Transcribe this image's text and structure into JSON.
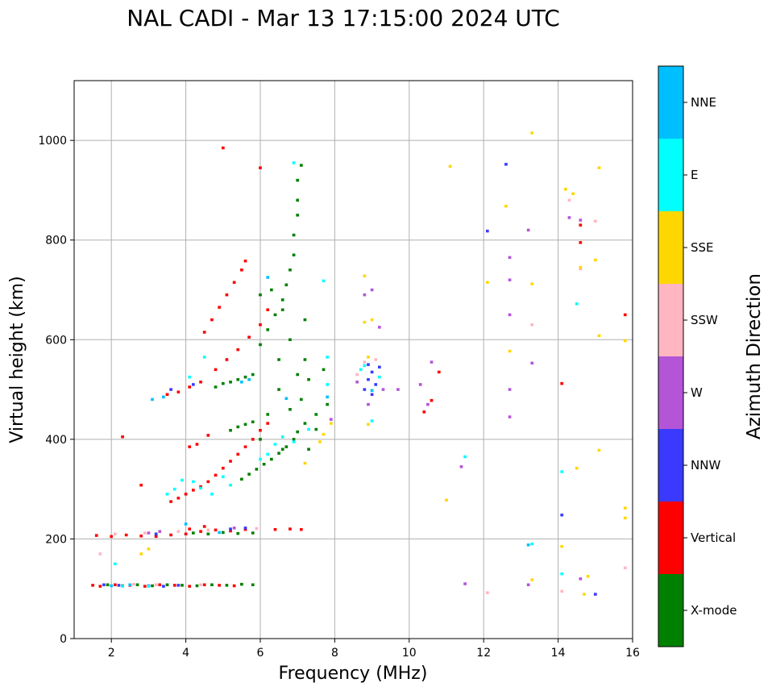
{
  "chart_data": {
    "type": "scatter",
    "title": "NAL CADI - Mar 13 17:15:00 2024 UTC",
    "xlabel": "Frequency (MHz)",
    "ylabel": "Virtual height (km)",
    "xlim": [
      1,
      16
    ],
    "ylim": [
      0,
      1120
    ],
    "xticks": [
      2,
      4,
      6,
      8,
      10,
      12,
      14,
      16
    ],
    "yticks": [
      0,
      200,
      400,
      600,
      800,
      1000
    ],
    "grid": true,
    "colorbar": {
      "title": "Azimuth Direction",
      "categories": [
        "X-mode",
        "Vertical",
        "NNW",
        "W",
        "SSW",
        "SSE",
        "E",
        "NNE"
      ],
      "colors": [
        "#008000",
        "#ff0000",
        "#3a3aff",
        "#b455d8",
        "#ffb6c1",
        "#ffd700",
        "#00ffff",
        "#00bfff"
      ]
    },
    "series": [
      {
        "name": "X-mode",
        "points": [
          [
            1.9,
            108
          ],
          [
            2.3,
            106
          ],
          [
            2.7,
            108
          ],
          [
            3.1,
            106
          ],
          [
            3.5,
            108
          ],
          [
            3.9,
            107
          ],
          [
            4.3,
            106
          ],
          [
            4.7,
            108
          ],
          [
            5.1,
            107
          ],
          [
            5.5,
            109
          ],
          [
            5.8,
            108
          ],
          [
            4.2,
            212
          ],
          [
            4.6,
            210
          ],
          [
            5.0,
            213
          ],
          [
            5.4,
            211
          ],
          [
            5.8,
            212
          ],
          [
            4.8,
            505
          ],
          [
            5.0,
            512
          ],
          [
            5.2,
            515
          ],
          [
            5.4,
            520
          ],
          [
            5.6,
            525
          ],
          [
            5.8,
            530
          ],
          [
            5.2,
            418
          ],
          [
            5.4,
            425
          ],
          [
            5.6,
            430
          ],
          [
            5.8,
            435
          ],
          [
            5.5,
            320
          ],
          [
            5.7,
            330
          ],
          [
            5.9,
            340
          ],
          [
            6.1,
            350
          ],
          [
            6.3,
            360
          ],
          [
            6.5,
            372
          ],
          [
            6.7,
            385
          ],
          [
            6.9,
            400
          ],
          [
            7.0,
            415
          ],
          [
            7.2,
            432
          ],
          [
            6.0,
            590
          ],
          [
            6.2,
            620
          ],
          [
            6.4,
            650
          ],
          [
            6.6,
            680
          ],
          [
            6.7,
            710
          ],
          [
            6.8,
            740
          ],
          [
            6.9,
            770
          ],
          [
            6.9,
            810
          ],
          [
            7.0,
            850
          ],
          [
            7.0,
            880
          ],
          [
            7.0,
            920
          ],
          [
            7.1,
            950
          ],
          [
            6.5,
            500
          ],
          [
            6.8,
            460
          ],
          [
            7.1,
            480
          ],
          [
            7.3,
            520
          ],
          [
            7.5,
            450
          ],
          [
            7.7,
            540
          ],
          [
            7.8,
            470
          ],
          [
            6.2,
            450
          ],
          [
            6.0,
            400
          ],
          [
            6.6,
            380
          ],
          [
            7.3,
            380
          ],
          [
            7.5,
            420
          ],
          [
            6.8,
            600
          ],
          [
            7.2,
            560
          ],
          [
            6.5,
            560
          ],
          [
            7.0,
            530
          ],
          [
            6.3,
            700
          ],
          [
            6.0,
            690
          ],
          [
            6.6,
            660
          ],
          [
            7.2,
            640
          ]
        ]
      },
      {
        "name": "Vertical",
        "points": [
          [
            1.5,
            107
          ],
          [
            1.7,
            105
          ],
          [
            2.1,
            108
          ],
          [
            2.5,
            107
          ],
          [
            2.9,
            105
          ],
          [
            3.3,
            108
          ],
          [
            3.7,
            107
          ],
          [
            4.1,
            105
          ],
          [
            4.5,
            108
          ],
          [
            4.9,
            107
          ],
          [
            5.3,
            106
          ],
          [
            1.6,
            207
          ],
          [
            2.0,
            205
          ],
          [
            2.4,
            208
          ],
          [
            2.8,
            206
          ],
          [
            3.2,
            205
          ],
          [
            3.6,
            208
          ],
          [
            4.0,
            210
          ],
          [
            4.4,
            215
          ],
          [
            4.8,
            218
          ],
          [
            5.2,
            216
          ],
          [
            5.6,
            219
          ],
          [
            6.4,
            219
          ],
          [
            6.8,
            220
          ],
          [
            7.1,
            219
          ],
          [
            3.6,
            275
          ],
          [
            3.8,
            282
          ],
          [
            4.0,
            290
          ],
          [
            4.2,
            298
          ],
          [
            4.4,
            305
          ],
          [
            4.6,
            315
          ],
          [
            4.8,
            328
          ],
          [
            5.0,
            342
          ],
          [
            5.2,
            356
          ],
          [
            5.4,
            370
          ],
          [
            5.6,
            385
          ],
          [
            5.8,
            400
          ],
          [
            6.0,
            418
          ],
          [
            6.2,
            432
          ],
          [
            3.5,
            490
          ],
          [
            3.8,
            495
          ],
          [
            4.1,
            505
          ],
          [
            4.4,
            515
          ],
          [
            4.8,
            540
          ],
          [
            5.1,
            560
          ],
          [
            5.4,
            580
          ],
          [
            5.7,
            605
          ],
          [
            6.0,
            630
          ],
          [
            6.2,
            660
          ],
          [
            4.1,
            385
          ],
          [
            4.3,
            390
          ],
          [
            4.6,
            408
          ],
          [
            4.5,
            615
          ],
          [
            4.7,
            640
          ],
          [
            4.9,
            665
          ],
          [
            5.1,
            690
          ],
          [
            5.3,
            715
          ],
          [
            5.5,
            740
          ],
          [
            5.6,
            758
          ],
          [
            5.0,
            985
          ],
          [
            6.0,
            945
          ],
          [
            2.3,
            405
          ],
          [
            2.8,
            308
          ],
          [
            10.6,
            478
          ],
          [
            10.4,
            455
          ],
          [
            14.1,
            512
          ],
          [
            14.6,
            830
          ],
          [
            14.6,
            795
          ],
          [
            15.8,
            650
          ],
          [
            10.8,
            535
          ],
          [
            4.1,
            220
          ],
          [
            4.5,
            225
          ]
        ]
      },
      {
        "name": "NNW",
        "points": [
          [
            1.8,
            108
          ],
          [
            2.2,
            107
          ],
          [
            3.0,
            106
          ],
          [
            3.4,
            105
          ],
          [
            3.8,
            107
          ],
          [
            5.2,
            220
          ],
          [
            5.6,
            222
          ],
          [
            3.6,
            500
          ],
          [
            4.2,
            510
          ],
          [
            8.9,
            520
          ],
          [
            9.0,
            535
          ],
          [
            8.8,
            500
          ],
          [
            9.1,
            510
          ],
          [
            8.9,
            550
          ],
          [
            9.0,
            490
          ],
          [
            9.2,
            545
          ],
          [
            12.6,
            952
          ],
          [
            12.1,
            818
          ],
          [
            15.0,
            89
          ],
          [
            14.1,
            248
          ],
          [
            3.2,
            210
          ]
        ]
      },
      {
        "name": "W",
        "points": [
          [
            3.0,
            212
          ],
          [
            3.3,
            215
          ],
          [
            5.3,
            222
          ],
          [
            7.9,
            440
          ],
          [
            8.6,
            515
          ],
          [
            8.9,
            470
          ],
          [
            9.3,
            500
          ],
          [
            9.2,
            625
          ],
          [
            8.8,
            690
          ],
          [
            9.0,
            700
          ],
          [
            9.7,
            500
          ],
          [
            10.3,
            510
          ],
          [
            12.7,
            765
          ],
          [
            12.7,
            720
          ],
          [
            12.7,
            650
          ],
          [
            12.7,
            500
          ],
          [
            12.7,
            445
          ],
          [
            13.2,
            820
          ],
          [
            13.3,
            553
          ],
          [
            14.3,
            845
          ],
          [
            14.6,
            840
          ],
          [
            14.6,
            120
          ],
          [
            13.2,
            108
          ],
          [
            11.4,
            345
          ],
          [
            11.5,
            110
          ],
          [
            10.6,
            555
          ],
          [
            10.5,
            470
          ]
        ]
      },
      {
        "name": "SSW",
        "points": [
          [
            1.7,
            170
          ],
          [
            2.6,
            109
          ],
          [
            3.2,
            108
          ],
          [
            4.4,
            108
          ],
          [
            2.1,
            210
          ],
          [
            2.9,
            212
          ],
          [
            3.8,
            215
          ],
          [
            4.6,
            218
          ],
          [
            5.9,
            221
          ],
          [
            8.8,
            555
          ],
          [
            9.1,
            560
          ],
          [
            8.6,
            530
          ],
          [
            15.0,
            838
          ],
          [
            14.1,
            95
          ],
          [
            15.8,
            142
          ],
          [
            12.1,
            92
          ],
          [
            13.3,
            630
          ],
          [
            14.6,
            742
          ],
          [
            14.3,
            880
          ]
        ]
      },
      {
        "name": "SSE",
        "points": [
          [
            2.8,
            170
          ],
          [
            3.0,
            180
          ],
          [
            7.2,
            352
          ],
          [
            7.6,
            395
          ],
          [
            7.7,
            410
          ],
          [
            7.9,
            432
          ],
          [
            8.8,
            635
          ],
          [
            9.0,
            640
          ],
          [
            8.9,
            565
          ],
          [
            8.9,
            430
          ],
          [
            8.8,
            728
          ],
          [
            11.1,
            948
          ],
          [
            13.3,
            1015
          ],
          [
            12.6,
            868
          ],
          [
            12.1,
            715
          ],
          [
            13.3,
            712
          ],
          [
            14.2,
            902
          ],
          [
            14.4,
            893
          ],
          [
            15.1,
            945
          ],
          [
            15.0,
            760
          ],
          [
            15.1,
            608
          ],
          [
            15.1,
            378
          ],
          [
            14.5,
            342
          ],
          [
            14.6,
            745
          ],
          [
            14.8,
            125
          ],
          [
            14.7,
            89
          ],
          [
            13.3,
            118
          ],
          [
            14.1,
            185
          ],
          [
            15.8,
            598
          ],
          [
            15.8,
            262
          ],
          [
            15.8,
            242
          ],
          [
            12.7,
            577
          ],
          [
            11.0,
            278
          ]
        ]
      },
      {
        "name": "E",
        "points": [
          [
            2.1,
            150
          ],
          [
            2.3,
            105
          ],
          [
            3.0,
            105
          ],
          [
            3.5,
            290
          ],
          [
            3.7,
            300
          ],
          [
            3.9,
            318
          ],
          [
            4.2,
            315
          ],
          [
            4.4,
            302
          ],
          [
            4.7,
            290
          ],
          [
            5.0,
            325
          ],
          [
            5.2,
            308
          ],
          [
            6.0,
            360
          ],
          [
            6.2,
            370
          ],
          [
            6.4,
            390
          ],
          [
            6.6,
            405
          ],
          [
            6.9,
            395
          ],
          [
            7.3,
            420
          ],
          [
            7.8,
            510
          ],
          [
            7.8,
            565
          ],
          [
            8.7,
            540
          ],
          [
            9.2,
            525
          ],
          [
            9.0,
            437
          ],
          [
            6.9,
            955
          ],
          [
            7.7,
            718
          ],
          [
            4.5,
            565
          ],
          [
            4.1,
            525
          ],
          [
            14.1,
            130
          ],
          [
            14.1,
            335
          ],
          [
            14.5,
            672
          ],
          [
            13.3,
            190
          ],
          [
            11.5,
            365
          ],
          [
            8.8,
            548
          ]
        ]
      },
      {
        "name": "NNE",
        "points": [
          [
            2.0,
            106
          ],
          [
            2.5,
            108
          ],
          [
            4.0,
            230
          ],
          [
            4.9,
            213
          ],
          [
            3.1,
            480
          ],
          [
            3.4,
            485
          ],
          [
            5.5,
            515
          ],
          [
            6.2,
            725
          ],
          [
            5.7,
            520
          ],
          [
            6.7,
            482
          ],
          [
            7.8,
            485
          ],
          [
            9.0,
            498
          ],
          [
            13.2,
            188
          ]
        ]
      }
    ]
  }
}
